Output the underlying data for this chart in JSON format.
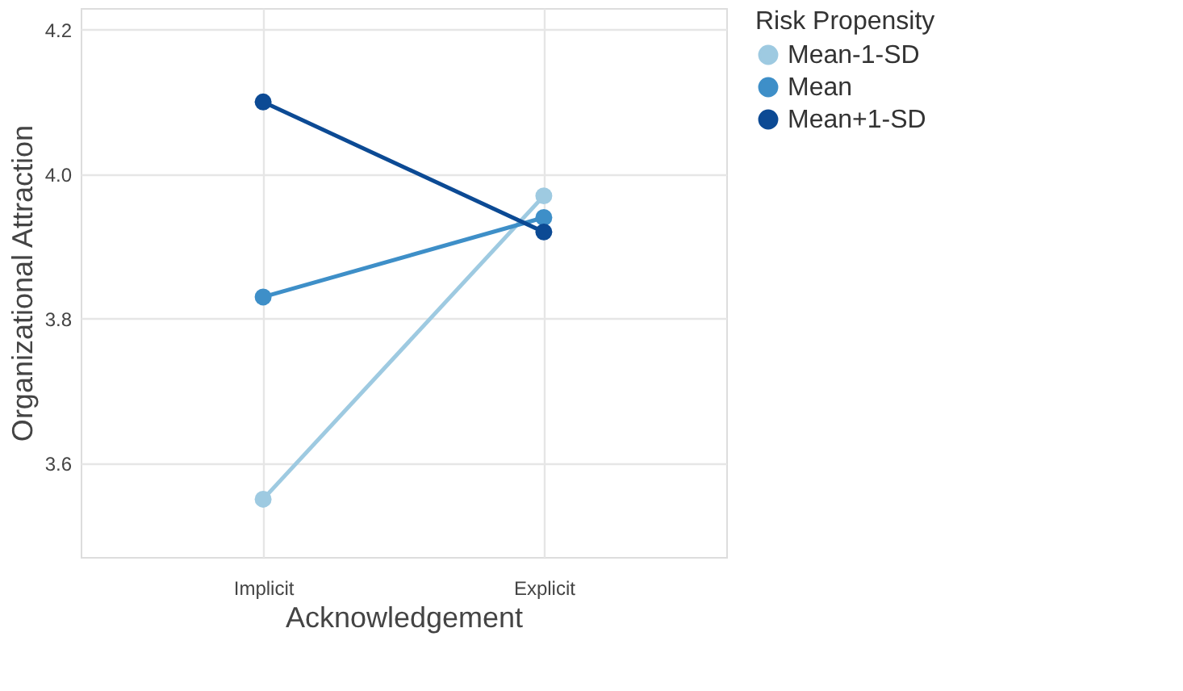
{
  "chart_data": {
    "type": "line",
    "xlabel": "Acknowledgement",
    "ylabel": "Organizational Attraction",
    "legend_title": "Risk Propensity",
    "categories": [
      "Implicit",
      "Explicit"
    ],
    "series": [
      {
        "name": "Mean-1-SD",
        "color": "#9ecae1",
        "values": [
          3.55,
          3.97
        ]
      },
      {
        "name": "Mean",
        "color": "#3e8fc8",
        "values": [
          3.83,
          3.94
        ]
      },
      {
        "name": "Mean+1-SD",
        "color": "#0c4a94",
        "values": [
          4.1,
          3.92
        ]
      }
    ],
    "ylim": [
      3.47,
      4.23
    ],
    "yticks": [
      3.6,
      3.8,
      {
        "value": 4,
        "label": "4.0"
      },
      4.2
    ],
    "grid": true,
    "legend": "right",
    "marker": "circle",
    "line_style": "solid"
  }
}
